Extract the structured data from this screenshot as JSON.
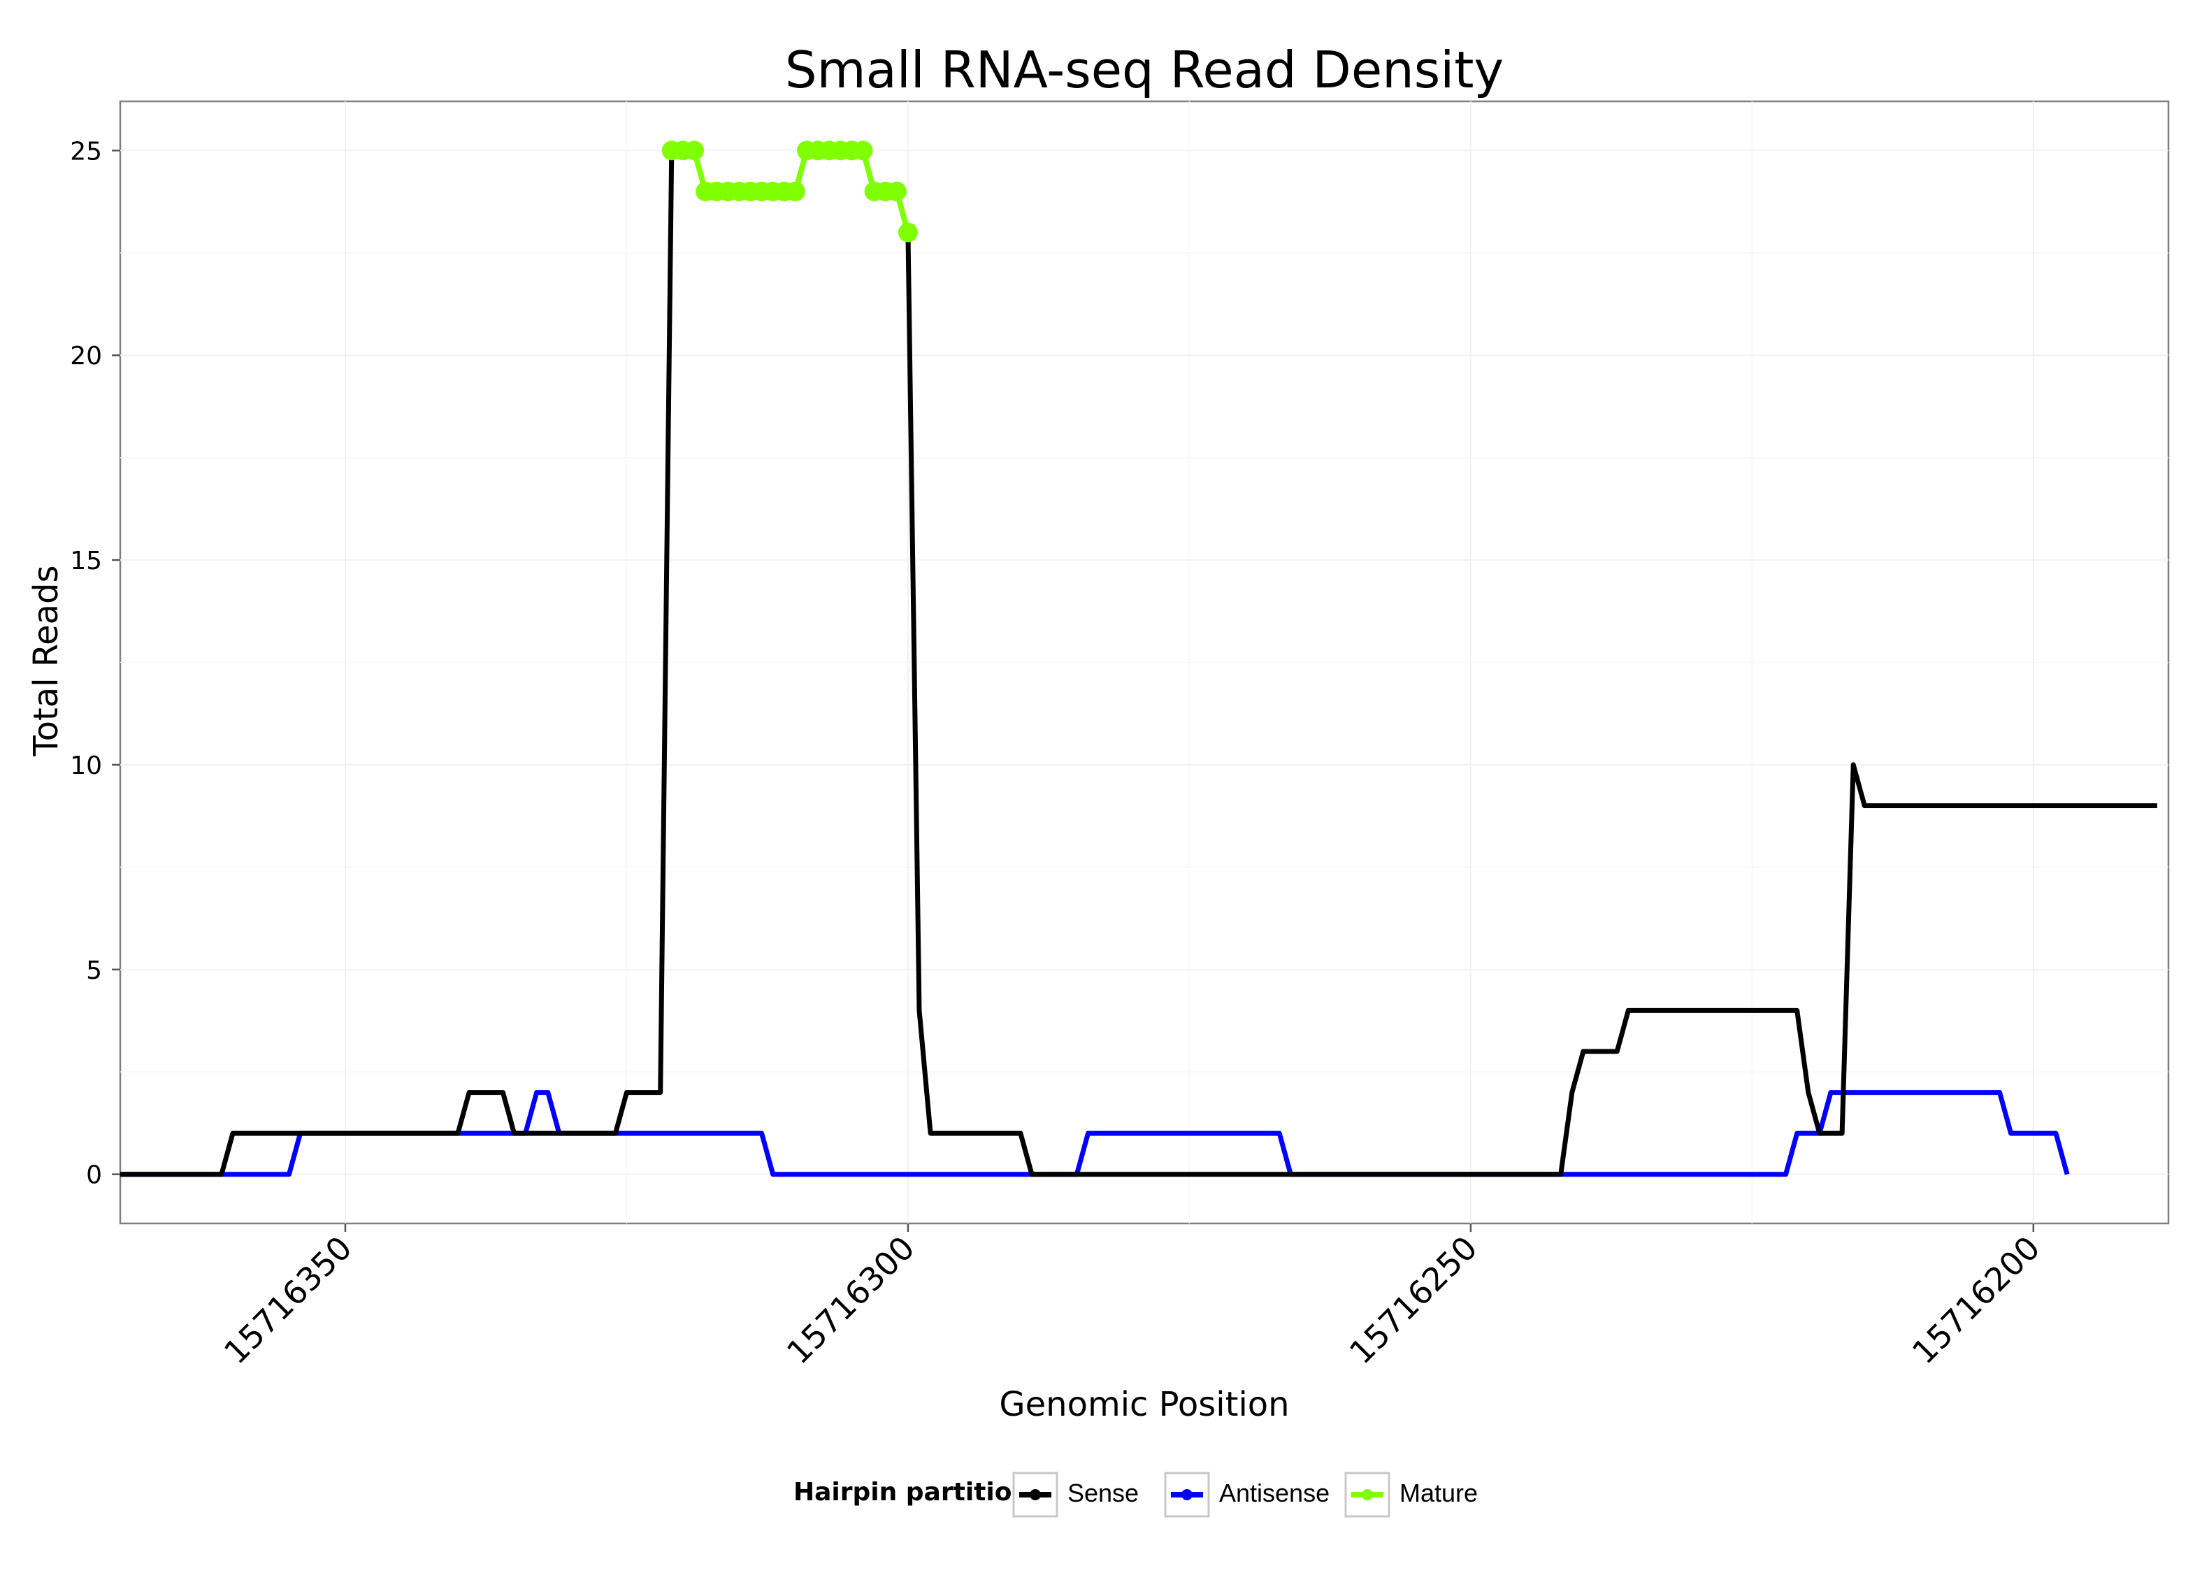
{
  "chart_data": {
    "type": "line",
    "title": "Small RNA-seq Read Density",
    "xlabel": "Genomic Position",
    "ylabel": "Total Reads",
    "xlim": [
      15716370,
      15716188
    ],
    "ylim": [
      -1.2,
      26.2
    ],
    "x_reversed": true,
    "grid": true,
    "x_ticks": [
      15716350,
      15716300,
      15716250,
      15716200
    ],
    "x_tick_labels": [
      "15716350",
      "15716300",
      "15716250",
      "15716200"
    ],
    "y_ticks": [
      0,
      5,
      10,
      15,
      20,
      25
    ],
    "y_tick_labels": [
      "0",
      "5",
      "10",
      "15",
      "20",
      "25"
    ],
    "legend": {
      "title": "Hairpin partition",
      "position": "bottom",
      "items": [
        {
          "name": "Sense",
          "color": "#000000"
        },
        {
          "name": "Antisense",
          "color": "#0000ff"
        },
        {
          "name": "Mature",
          "color": "#7fff00"
        }
      ]
    },
    "series": [
      {
        "name": "Sense",
        "color": "#000000",
        "points": [
          [
            15716370,
            0
          ],
          [
            15716361,
            0
          ],
          [
            15716360,
            1
          ],
          [
            15716340,
            1
          ],
          [
            15716339,
            2
          ],
          [
            15716336,
            2
          ],
          [
            15716335,
            1
          ],
          [
            15716326,
            1
          ],
          [
            15716325,
            2
          ],
          [
            15716322,
            2
          ],
          [
            15716321,
            25
          ],
          [
            15716319,
            25
          ],
          [
            15716318,
            24
          ],
          [
            15716310,
            24
          ],
          [
            15716309,
            25
          ],
          [
            15716304,
            25
          ],
          [
            15716303,
            24
          ],
          [
            15716301,
            24
          ],
          [
            15716300,
            23
          ],
          [
            15716299,
            4
          ],
          [
            15716298,
            1
          ],
          [
            15716290,
            1
          ],
          [
            15716289,
            0
          ],
          [
            15716242,
            0
          ],
          [
            15716241,
            2
          ],
          [
            15716240,
            3
          ],
          [
            15716237,
            3
          ],
          [
            15716236,
            4
          ],
          [
            15716221,
            4
          ],
          [
            15716220,
            2
          ],
          [
            15716219,
            1
          ],
          [
            15716217,
            1
          ],
          [
            15716216,
            10
          ],
          [
            15716215,
            9
          ],
          [
            15716189,
            9
          ]
        ]
      },
      {
        "name": "Antisense",
        "color": "#0000ff",
        "points": [
          [
            15716370,
            0
          ],
          [
            15716355,
            0
          ],
          [
            15716354,
            1
          ],
          [
            15716334,
            1
          ],
          [
            15716333,
            2
          ],
          [
            15716332,
            2
          ],
          [
            15716331,
            1
          ],
          [
            15716313,
            1
          ],
          [
            15716312,
            0
          ],
          [
            15716285,
            0
          ],
          [
            15716284,
            1
          ],
          [
            15716267,
            1
          ],
          [
            15716266,
            0
          ],
          [
            15716222,
            0
          ],
          [
            15716221,
            1
          ],
          [
            15716219,
            1
          ],
          [
            15716218,
            2
          ],
          [
            15716203,
            2
          ],
          [
            15716202,
            1
          ],
          [
            15716198,
            1
          ],
          [
            15716197,
            0
          ]
        ]
      },
      {
        "name": "Mature",
        "color": "#7fff00",
        "points": [
          [
            15716321,
            25
          ],
          [
            15716320,
            25
          ],
          [
            15716319,
            25
          ],
          [
            15716318,
            24
          ],
          [
            15716317,
            24
          ],
          [
            15716316,
            24
          ],
          [
            15716315,
            24
          ],
          [
            15716314,
            24
          ],
          [
            15716313,
            24
          ],
          [
            15716312,
            24
          ],
          [
            15716311,
            24
          ],
          [
            15716310,
            24
          ],
          [
            15716309,
            25
          ],
          [
            15716308,
            25
          ],
          [
            15716307,
            25
          ],
          [
            15716306,
            25
          ],
          [
            15716305,
            25
          ],
          [
            15716304,
            25
          ],
          [
            15716303,
            24
          ],
          [
            15716302,
            24
          ],
          [
            15716301,
            24
          ],
          [
            15716300,
            23
          ]
        ]
      }
    ]
  }
}
